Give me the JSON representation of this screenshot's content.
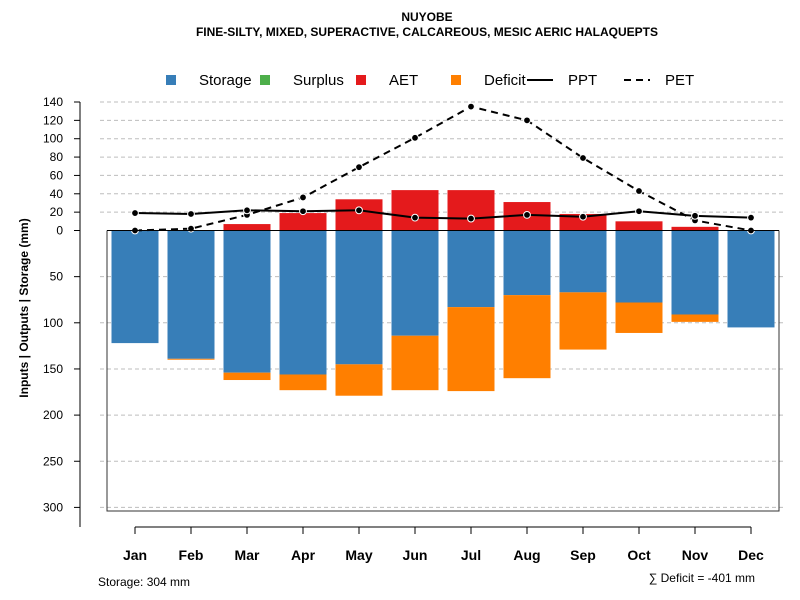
{
  "chart_data": {
    "type": "bar",
    "title": "NUYOBE",
    "subtitle": "FINE-SILTY, MIXED, SUPERACTIVE, CALCAREOUS, MESIC AERIC HALAQUEPTS",
    "ylabel": "Inputs | Outputs | Storage     (mm)",
    "categories": [
      "Jan",
      "Feb",
      "Mar",
      "Apr",
      "May",
      "Jun",
      "Jul",
      "Aug",
      "Sep",
      "Oct",
      "Nov",
      "Dec"
    ],
    "upper_axis": {
      "ylim": [
        0,
        140
      ],
      "ticks": [
        "140",
        "120",
        "100",
        "80",
        "60",
        "40",
        "20",
        "0"
      ],
      "tick_values": [
        140,
        120,
        100,
        80,
        60,
        40,
        20,
        0
      ]
    },
    "lower_axis": {
      "ylim": [
        0,
        304
      ],
      "ticks": [
        "50",
        "100",
        "150",
        "200",
        "250",
        "300"
      ],
      "tick_values": [
        50,
        100,
        150,
        200,
        250,
        300
      ]
    },
    "legend": [
      {
        "label": "Storage",
        "kind": "box",
        "color": "#377eb8"
      },
      {
        "label": "Surplus",
        "kind": "box",
        "color": "#4daf4a"
      },
      {
        "label": "AET",
        "kind": "box",
        "color": "#e41a1c"
      },
      {
        "label": "Deficit",
        "kind": "box",
        "color": "#ff7f00"
      },
      {
        "label": "PPT",
        "kind": "solid",
        "color": "#000000"
      },
      {
        "label": "PET",
        "kind": "dashed",
        "color": "#000000"
      }
    ],
    "series": [
      {
        "name": "AET",
        "color": "#e41a1c",
        "values": [
          0,
          0,
          7,
          19,
          34,
          44,
          44,
          31,
          18,
          10,
          4,
          0
        ]
      },
      {
        "name": "Surplus",
        "color": "#4daf4a",
        "values": [
          0,
          0,
          0,
          0,
          0,
          0,
          0,
          0,
          0,
          0,
          0,
          0
        ]
      },
      {
        "name": "Storage",
        "color": "#377eb8",
        "values": [
          122,
          139,
          154,
          156,
          145,
          114,
          83,
          70,
          67,
          78,
          91,
          105
        ]
      },
      {
        "name": "Deficit",
        "color": "#ff7f00",
        "values": [
          0,
          1,
          8,
          17,
          34,
          59,
          91,
          90,
          62,
          33,
          8,
          0
        ]
      },
      {
        "name": "PPT",
        "color": "#000000",
        "values": [
          19,
          18,
          22,
          21,
          22,
          14,
          13,
          17,
          15,
          21,
          16,
          14
        ]
      },
      {
        "name": "PET",
        "color": "#000000",
        "values": [
          0,
          2,
          17,
          36,
          69,
          101,
          135,
          120,
          79,
          43,
          11,
          0
        ]
      }
    ],
    "footer_left": "Storage: 304 mm",
    "footer_right": "∑ Deficit = -401 mm"
  }
}
